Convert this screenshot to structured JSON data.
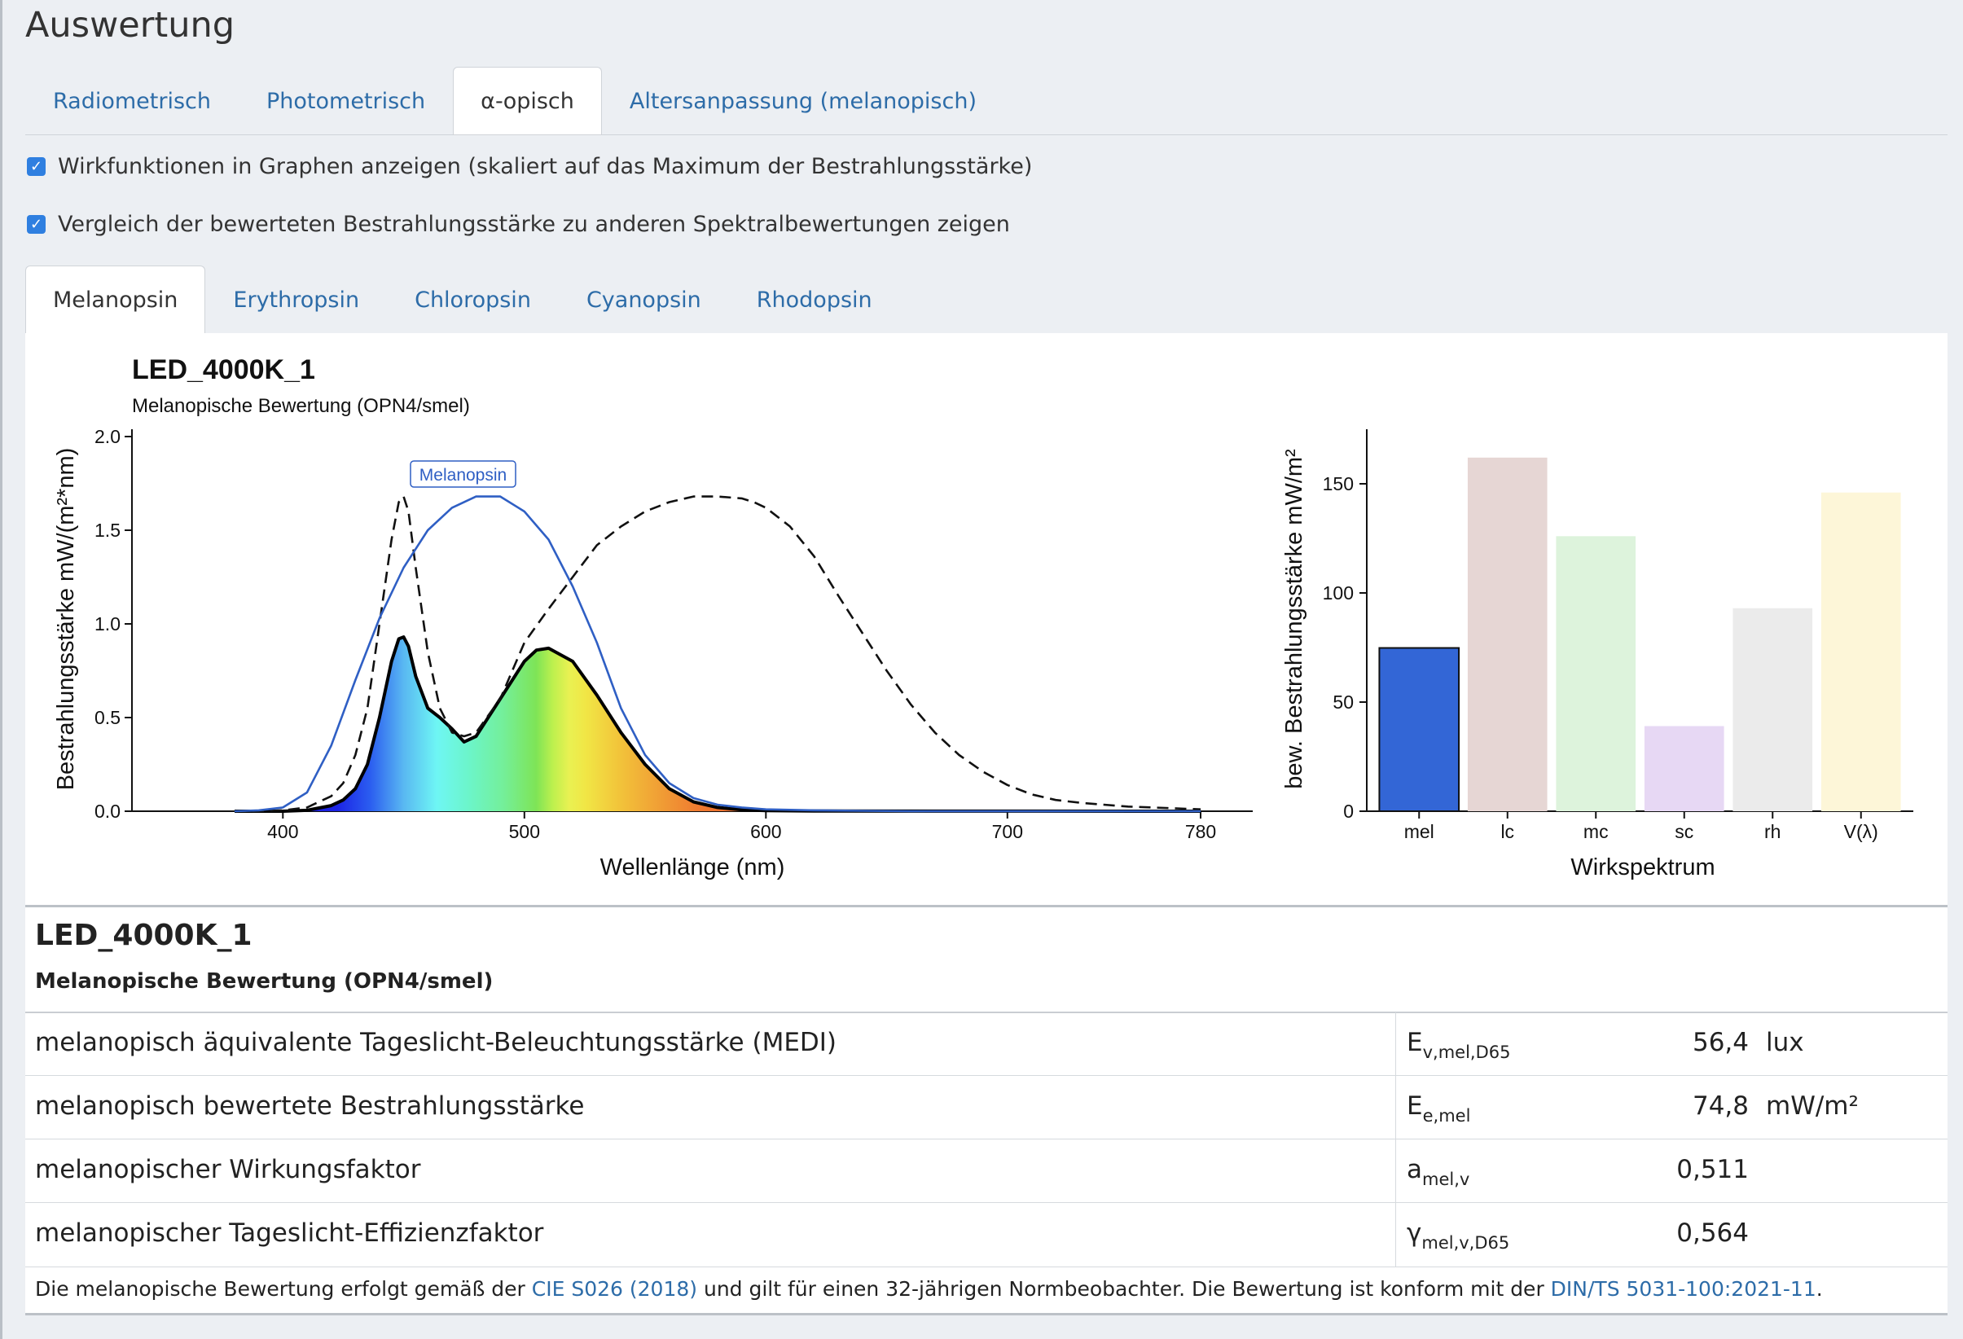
{
  "page": {
    "title": "Auswertung"
  },
  "tabs": [
    {
      "label": "Radiometrisch",
      "active": false
    },
    {
      "label": "Photometrisch",
      "active": false
    },
    {
      "label": "α-opisch",
      "active": true
    },
    {
      "label": "Altersanpassung (melanopisch)",
      "active": false
    }
  ],
  "options": {
    "show_action_functions": {
      "label": "Wirkfunktionen in Graphen anzeigen (skaliert auf das Maximum der Bestrahlungsstärke)",
      "checked": true
    },
    "show_comparison": {
      "label": "Vergleich der bewerteten Bestrahlungsstärke zu anderen Spektralbewertungen zeigen",
      "checked": true
    }
  },
  "subtabs": [
    {
      "label": "Melanopsin",
      "active": true
    },
    {
      "label": "Erythropsin",
      "active": false
    },
    {
      "label": "Chloropsin",
      "active": false
    },
    {
      "label": "Cyanopsin",
      "active": false
    },
    {
      "label": "Rhodopsin",
      "active": false
    }
  ],
  "chart": {
    "title": "LED_4000K_1",
    "subtitle": "Melanopische Bewertung (OPN4/smel)"
  },
  "chart_data": [
    {
      "type": "line",
      "title": "LED_4000K_1",
      "subtitle": "Melanopische Bewertung (OPN4/smel)",
      "xlabel": "Wellenlänge (nm)",
      "ylabel": "Bestrahlungsstärke  mW/(m²*nm)",
      "xlim": [
        380,
        780
      ],
      "ylim": [
        0,
        2.0
      ],
      "xticks": [
        400,
        500,
        600,
        700,
        780
      ],
      "yticks": [
        "0.0",
        "0.5",
        "1.0",
        "1.5",
        "2.0"
      ],
      "annotation": "Melanopsin",
      "series": [
        {
          "name": "Melanopsin",
          "style": "solid-blue",
          "color": "#2f5fc4",
          "x": [
            380,
            390,
            400,
            410,
            420,
            430,
            440,
            450,
            460,
            470,
            480,
            490,
            500,
            510,
            520,
            530,
            540,
            550,
            560,
            570,
            580,
            590,
            600,
            620,
            640,
            660,
            680,
            700,
            780
          ],
          "y": [
            0,
            0.005,
            0.02,
            0.1,
            0.35,
            0.7,
            1.03,
            1.3,
            1.5,
            1.62,
            1.68,
            1.68,
            1.6,
            1.45,
            1.2,
            0.9,
            0.55,
            0.3,
            0.15,
            0.07,
            0.035,
            0.02,
            0.01,
            0.005,
            0.002,
            0,
            0,
            0,
            0
          ]
        },
        {
          "style": "dashed-black",
          "color": "#111111",
          "x": [
            380,
            390,
            400,
            410,
            420,
            425,
            430,
            435,
            440,
            445,
            448,
            450,
            452,
            455,
            460,
            465,
            470,
            475,
            480,
            490,
            500,
            510,
            520,
            530,
            540,
            550,
            560,
            570,
            580,
            590,
            595,
            600,
            610,
            620,
            630,
            640,
            650,
            660,
            670,
            680,
            690,
            700,
            710,
            720,
            730,
            740,
            750,
            760,
            770,
            780
          ],
          "y": [
            0,
            0,
            0.005,
            0.02,
            0.08,
            0.15,
            0.3,
            0.55,
            1.0,
            1.45,
            1.65,
            1.68,
            1.6,
            1.3,
            0.85,
            0.55,
            0.42,
            0.4,
            0.42,
            0.6,
            0.9,
            1.08,
            1.25,
            1.42,
            1.52,
            1.6,
            1.65,
            1.68,
            1.68,
            1.67,
            1.65,
            1.62,
            1.52,
            1.36,
            1.15,
            0.95,
            0.75,
            0.57,
            0.42,
            0.3,
            0.21,
            0.14,
            0.09,
            0.06,
            0.045,
            0.035,
            0.025,
            0.02,
            0.015,
            0.01
          ]
        },
        {
          "style": "solid-black-filled-spectral",
          "color": "#000000",
          "x": [
            380,
            400,
            410,
            420,
            425,
            430,
            435,
            440,
            445,
            448,
            450,
            452,
            455,
            460,
            465,
            470,
            475,
            480,
            490,
            500,
            505,
            510,
            520,
            530,
            540,
            550,
            560,
            570,
            580,
            590,
            600,
            620,
            780
          ],
          "y": [
            0,
            0,
            0.005,
            0.03,
            0.06,
            0.12,
            0.25,
            0.5,
            0.8,
            0.92,
            0.93,
            0.88,
            0.72,
            0.55,
            0.5,
            0.44,
            0.37,
            0.4,
            0.6,
            0.8,
            0.86,
            0.87,
            0.8,
            0.62,
            0.42,
            0.25,
            0.12,
            0.05,
            0.02,
            0.008,
            0.003,
            0.001,
            0
          ]
        }
      ]
    },
    {
      "type": "bar",
      "xlabel": "Wirkspektrum",
      "ylabel": "bew. Bestrahlungsstärke  mW/m²",
      "ylim": [
        0,
        175
      ],
      "yticks": [
        0,
        50,
        100,
        150
      ],
      "categories": [
        "mel",
        "lc",
        "mc",
        "sc",
        "rh",
        "V(λ)"
      ],
      "values": [
        74.8,
        162,
        126,
        39,
        93,
        146
      ],
      "colors": [
        "#3366d6",
        "#e6d6d4",
        "#ddf3dc",
        "#e7d8f4",
        "#ebebeb",
        "#fdf6d8"
      ]
    }
  ],
  "results": {
    "title": "LED_4000K_1",
    "subtitle": "Melanopische Bewertung (OPN4/smel)",
    "rows": [
      {
        "label": "melanopisch äquivalente Tageslicht-Beleuchtungsstärke (MEDI)",
        "sym": "E",
        "sub": "v,mel,D65",
        "value": "56,4",
        "unit": "lux"
      },
      {
        "label": "melanopisch bewertete Bestrahlungsstärke",
        "sym": "E",
        "sub": "e,mel",
        "value": "74,8",
        "unit": "mW/m²"
      },
      {
        "label": "melanopischer Wirkungsfaktor",
        "sym": "a",
        "sub": "mel,v",
        "value": "0,511",
        "unit": ""
      },
      {
        "label": "melanopischer Tageslicht-Effizienzfaktor",
        "sym": "γ",
        "sub": "mel,v,D65",
        "value": "0,564",
        "unit": ""
      }
    ]
  },
  "footnote": {
    "text1": "Die melanopische Bewertung erfolgt gemäß der ",
    "link1": "CIE S026 (2018)",
    "text2": " und gilt für einen 32-jährigen Normbeobachter. Die Bewertung ist konform mit der ",
    "link2": "DIN/TS 5031-100:2021-11",
    "text3": "."
  }
}
